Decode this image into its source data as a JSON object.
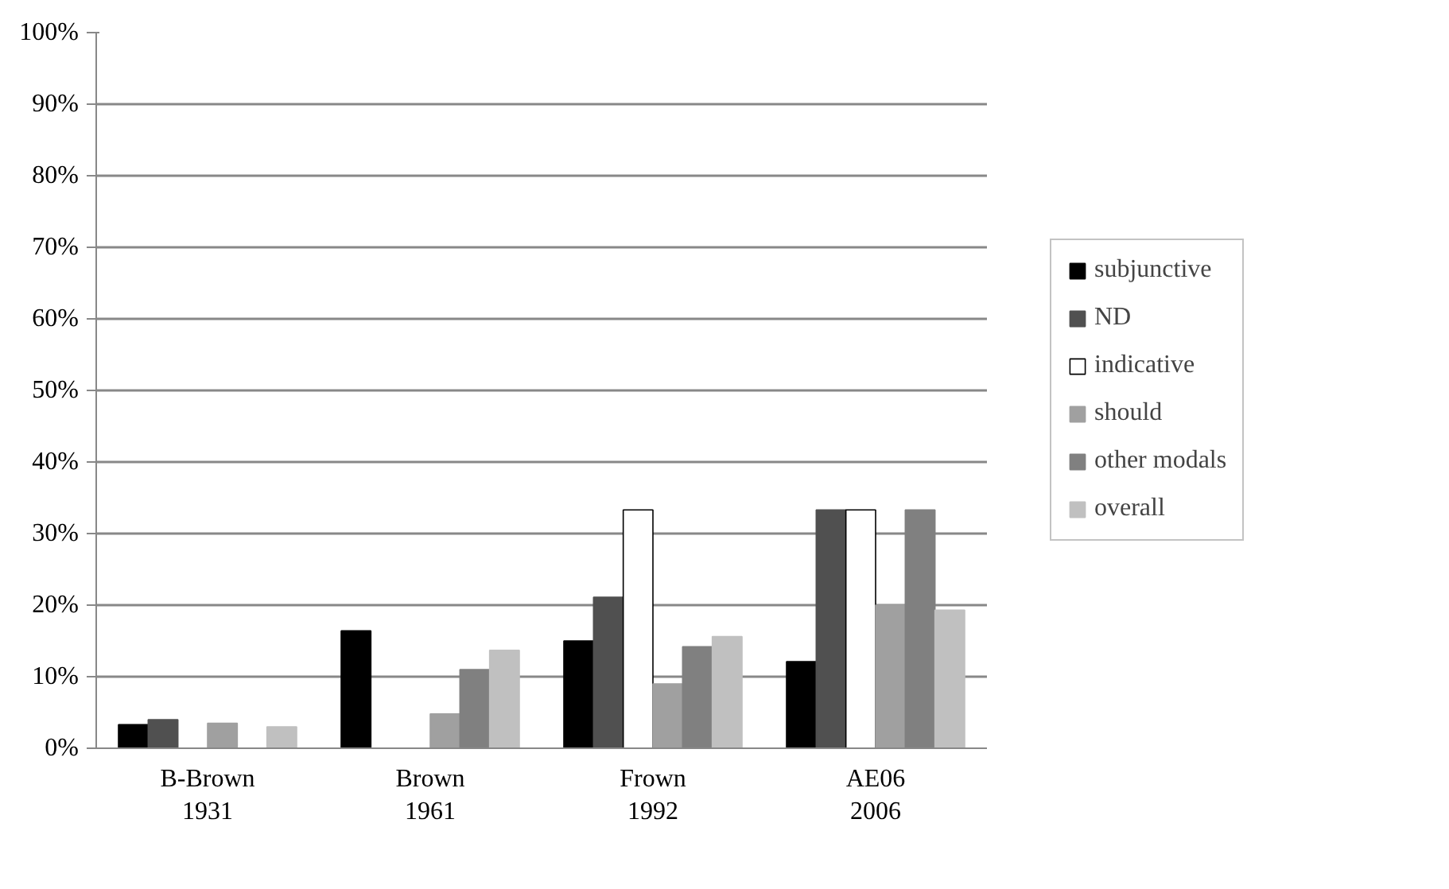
{
  "chart_data": {
    "type": "bar",
    "categories": [
      "B-Brown\n1931",
      "Brown\n1961",
      "Frown\n1992",
      "AE06\n2006"
    ],
    "series": [
      {
        "name": "subjunctive",
        "color": "#000000",
        "values": [
          3.3,
          16.4,
          15.0,
          12.1
        ]
      },
      {
        "name": "ND",
        "color": "#505050",
        "values": [
          4.0,
          null,
          21.1,
          33.3
        ]
      },
      {
        "name": "indicative",
        "color": "#ffffff",
        "values": [
          null,
          null,
          33.3,
          33.3
        ]
      },
      {
        "name": "should",
        "color": "#a0a0a0",
        "values": [
          3.5,
          4.8,
          9.0,
          20.0
        ]
      },
      {
        "name": "other modals",
        "color": "#808080",
        "values": [
          null,
          11.0,
          14.2,
          33.3
        ]
      },
      {
        "name": "overall",
        "color": "#c0c0c0",
        "values": [
          3.0,
          13.7,
          15.6,
          19.3
        ]
      }
    ],
    "ylim": [
      0,
      100
    ],
    "yticks": [
      {
        "value": 0,
        "label": "0%"
      },
      {
        "value": 10,
        "label": "10%"
      },
      {
        "value": 20,
        "label": "20%"
      },
      {
        "value": 30,
        "label": "30%"
      },
      {
        "value": 40,
        "label": "40%"
      },
      {
        "value": 50,
        "label": "50%"
      },
      {
        "value": 60,
        "label": "60%"
      },
      {
        "value": 70,
        "label": "70%"
      },
      {
        "value": 80,
        "label": "80%"
      },
      {
        "value": 90,
        "label": "90%"
      },
      {
        "value": 100,
        "label": "100%"
      }
    ],
    "grid": "y",
    "legend": "right"
  }
}
